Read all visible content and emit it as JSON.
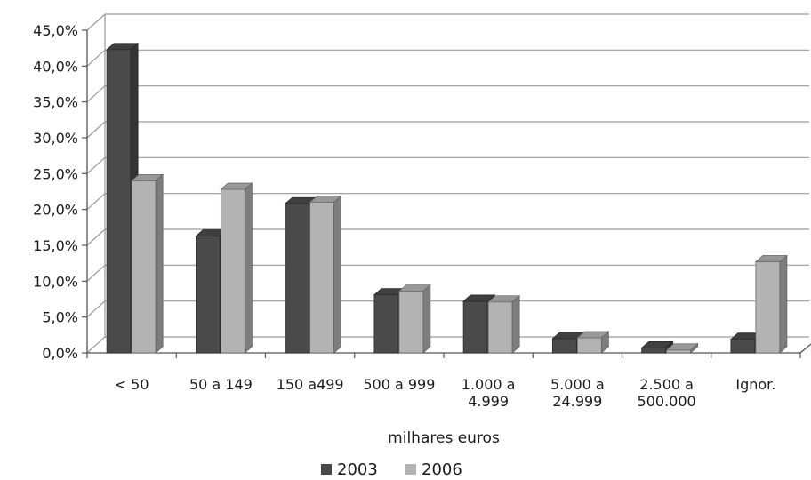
{
  "chart_data": {
    "type": "bar",
    "style": "3d-clustered-column",
    "categories": [
      [
        "< 50"
      ],
      [
        "50 a 149"
      ],
      [
        "150 a499"
      ],
      [
        "500 a 999"
      ],
      [
        "1.000 a",
        "4.999"
      ],
      [
        "5.000 a",
        "24.999"
      ],
      [
        "2.500 a",
        "500.000"
      ],
      [
        "Ignor."
      ]
    ],
    "series": [
      {
        "name": "2003",
        "color": "#4a4a4a",
        "values": [
          42.3,
          16.3,
          20.8,
          8.1,
          7.2,
          2.0,
          0.7,
          1.9
        ]
      },
      {
        "name": "2006",
        "color": "#b3b3b3",
        "values": [
          24.0,
          22.8,
          21.0,
          8.6,
          7.1,
          2.1,
          0.4,
          12.7
        ]
      }
    ],
    "y_ticks": [
      "0,0%",
      "5,0%",
      "10,0%",
      "15,0%",
      "20,0%",
      "25,0%",
      "30,0%",
      "35,0%",
      "40,0%",
      "45,0%"
    ],
    "ylim": [
      0,
      45
    ],
    "xlabel": "milhares euros",
    "ylabel": "",
    "grid": true,
    "legend": "bottom"
  }
}
